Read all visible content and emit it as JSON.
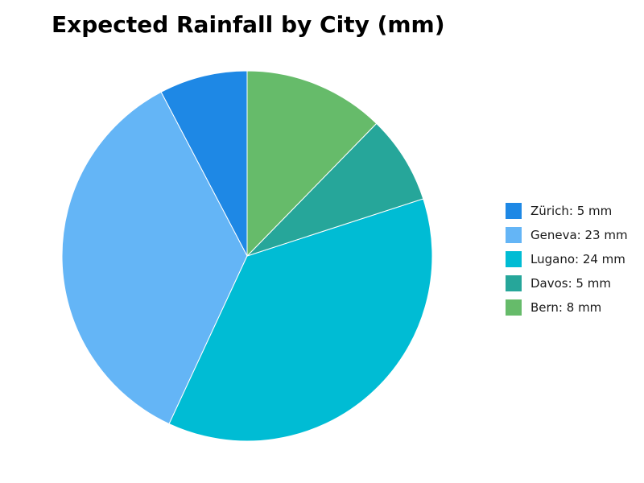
{
  "chart_data": {
    "type": "pie",
    "title": "Expected Rainfall by City (mm)",
    "unit": "mm",
    "slices": [
      {
        "label": "Zürich",
        "value": 5,
        "color": "#1e88e5"
      },
      {
        "label": "Geneva",
        "value": 23,
        "color": "#64b5f6"
      },
      {
        "label": "Lugano",
        "value": 24,
        "color": "#00bcd4"
      },
      {
        "label": "Davos",
        "value": 5,
        "color": "#26a69a"
      },
      {
        "label": "Bern",
        "value": 8,
        "color": "#66bb6a"
      }
    ],
    "start_angle": "top",
    "direction": "counterclockwise",
    "legend_position": "right"
  }
}
